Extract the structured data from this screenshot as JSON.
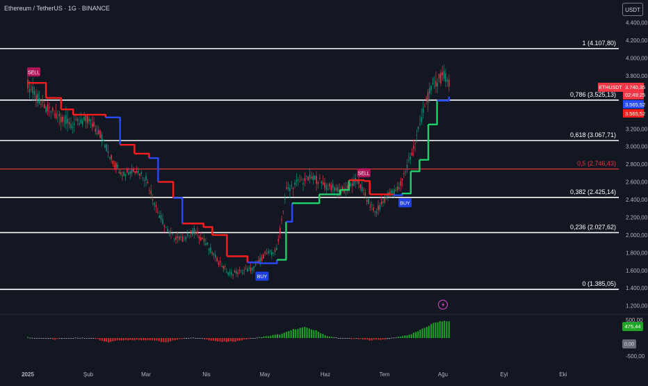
{
  "header": {
    "symbol_title": "Ethereum / TetherUS · 1G · BINANCE",
    "currency_button": "USDT"
  },
  "colors": {
    "background": "#131722",
    "fib_line": "#ffffff",
    "fib_mid_line": "#e03a3a",
    "trend_red": "#ff1e1e",
    "trend_blue": "#2a4bff",
    "trend_green": "#22d06a",
    "candle_up": "#089981",
    "candle_down": "#f23645",
    "osc_green": "#1fa626",
    "osc_red": "#d12c2c",
    "osc_gray": "#9a9ca3"
  },
  "chart_data": [
    {
      "type": "candlestick",
      "title": "Ethereum / TetherUS · 1G · BINANCE",
      "x_ticks": [
        "2025",
        "Şub",
        "Mar",
        "Nis",
        "May",
        "Haz",
        "Tem",
        "Ağu",
        "Eyl",
        "Eki"
      ],
      "y_ticks": [
        "4.400,00",
        "4.200,00",
        "4.000,00",
        "3.800,00",
        "3.200,00",
        "3.000,00",
        "2.800,00",
        "2.600,00",
        "2.400,00",
        "2.200,00",
        "2.000,00",
        "1.800,00",
        "1.600,00",
        "1.400,00",
        "1.200,00"
      ],
      "ylim": [
        1200,
        4400
      ],
      "fibonacci_levels": [
        {
          "label": "1 (4.107,80)",
          "value": 4107.8
        },
        {
          "label": "0,786 (3.525,13)",
          "value": 3525.13
        },
        {
          "label": "0,618 (3.067,71)",
          "value": 3067.71
        },
        {
          "label": "0,5 (2.746,43)",
          "value": 2746.43
        },
        {
          "label": "0,382 (2.425,14)",
          "value": 2425.14
        },
        {
          "label": "0,236 (2.027,62)",
          "value": 2027.62
        },
        {
          "label": "0 (1.385,05)",
          "value": 1385.05
        }
      ],
      "price_labels": [
        {
          "label": "ETHUSDT",
          "value": "3.740,35",
          "sub": "02:49:25",
          "color": "#f23645"
        },
        {
          "label": "",
          "value": "3.565,52",
          "sub": "",
          "color": "#2a4bff"
        },
        {
          "label": "",
          "value": "3.565,52",
          "sub": "",
          "color": "#ff1e1e"
        }
      ],
      "signals": [
        {
          "text": "SELL",
          "month": 0.0,
          "price": 3840
        },
        {
          "text": "BUY",
          "month": 3.85,
          "price": 1530
        },
        {
          "text": "SELL",
          "month": 5.55,
          "price": 2700
        },
        {
          "text": "BUY",
          "month": 6.25,
          "price": 2360
        }
      ],
      "ohlc_path": [
        {
          "m": 0.0,
          "p": 3700
        },
        {
          "m": 0.25,
          "p": 3450
        },
        {
          "m": 0.5,
          "p": 3350
        },
        {
          "m": 0.75,
          "p": 3250
        },
        {
          "m": 1.0,
          "p": 3300
        },
        {
          "m": 1.2,
          "p": 3150
        },
        {
          "m": 1.45,
          "p": 2800
        },
        {
          "m": 1.6,
          "p": 2700
        },
        {
          "m": 1.8,
          "p": 2750
        },
        {
          "m": 2.0,
          "p": 2650
        },
        {
          "m": 2.2,
          "p": 2250
        },
        {
          "m": 2.4,
          "p": 2000
        },
        {
          "m": 2.6,
          "p": 1950
        },
        {
          "m": 2.8,
          "p": 2050
        },
        {
          "m": 3.0,
          "p": 1900
        },
        {
          "m": 3.2,
          "p": 1700
        },
        {
          "m": 3.4,
          "p": 1560
        },
        {
          "m": 3.6,
          "p": 1590
        },
        {
          "m": 3.8,
          "p": 1620
        },
        {
          "m": 4.0,
          "p": 1780
        },
        {
          "m": 4.2,
          "p": 1830
        },
        {
          "m": 4.35,
          "p": 2500
        },
        {
          "m": 4.55,
          "p": 2600
        },
        {
          "m": 4.8,
          "p": 2650
        },
        {
          "m": 5.0,
          "p": 2560
        },
        {
          "m": 5.3,
          "p": 2500
        },
        {
          "m": 5.55,
          "p": 2620
        },
        {
          "m": 5.7,
          "p": 2400
        },
        {
          "m": 5.85,
          "p": 2250
        },
        {
          "m": 6.05,
          "p": 2450
        },
        {
          "m": 6.25,
          "p": 2530
        },
        {
          "m": 6.4,
          "p": 2800
        },
        {
          "m": 6.55,
          "p": 3100
        },
        {
          "m": 6.7,
          "p": 3500
        },
        {
          "m": 6.85,
          "p": 3700
        },
        {
          "m": 7.0,
          "p": 3800
        },
        {
          "m": 7.1,
          "p": 3740
        }
      ],
      "trend_line": [
        {
          "m": 0.0,
          "p": 3720,
          "c": "red"
        },
        {
          "m": 0.3,
          "p": 3550,
          "c": "red"
        },
        {
          "m": 0.55,
          "p": 3420,
          "c": "red"
        },
        {
          "m": 0.75,
          "p": 3360,
          "c": "red"
        },
        {
          "m": 1.3,
          "p": 3330,
          "c": "red"
        },
        {
          "m": 1.55,
          "p": 3020,
          "c": "blue"
        },
        {
          "m": 1.8,
          "p": 2920,
          "c": "red"
        },
        {
          "m": 2.05,
          "p": 2870,
          "c": "red"
        },
        {
          "m": 2.2,
          "p": 2600,
          "c": "blue"
        },
        {
          "m": 2.45,
          "p": 2420,
          "c": "red"
        },
        {
          "m": 2.6,
          "p": 2130,
          "c": "blue"
        },
        {
          "m": 2.95,
          "p": 2090,
          "c": "red"
        },
        {
          "m": 3.1,
          "p": 2000,
          "c": "red"
        },
        {
          "m": 3.35,
          "p": 1760,
          "c": "red"
        },
        {
          "m": 3.7,
          "p": 1690,
          "c": "red"
        },
        {
          "m": 3.9,
          "p": 1680,
          "c": "blue"
        },
        {
          "m": 4.2,
          "p": 1720,
          "c": "blue"
        },
        {
          "m": 4.35,
          "p": 2150,
          "c": "green"
        },
        {
          "m": 4.45,
          "p": 2360,
          "c": "blue"
        },
        {
          "m": 4.9,
          "p": 2460,
          "c": "green"
        },
        {
          "m": 5.25,
          "p": 2510,
          "c": "green"
        },
        {
          "m": 5.4,
          "p": 2620,
          "c": "green"
        },
        {
          "m": 5.65,
          "p": 2610,
          "c": "red"
        },
        {
          "m": 5.75,
          "p": 2460,
          "c": "red"
        },
        {
          "m": 6.15,
          "p": 2450,
          "c": "red"
        },
        {
          "m": 6.3,
          "p": 2470,
          "c": "blue"
        },
        {
          "m": 6.45,
          "p": 2720,
          "c": "green"
        },
        {
          "m": 6.6,
          "p": 2850,
          "c": "green"
        },
        {
          "m": 6.75,
          "p": 3250,
          "c": "green"
        },
        {
          "m": 6.9,
          "p": 3520,
          "c": "green"
        },
        {
          "m": 7.1,
          "p": 3565,
          "c": "blue"
        }
      ]
    },
    {
      "type": "bar",
      "title": "",
      "y_ticks": [
        "500,00",
        "-500,00"
      ],
      "ylim": [
        -500,
        500
      ],
      "value_labels": [
        {
          "text": "475,44",
          "color": "#1fa626"
        },
        {
          "text": "0,00",
          "color": "#6a6d78"
        }
      ],
      "osc_path": [
        {
          "m": 0.0,
          "v": 20
        },
        {
          "m": 0.2,
          "v": -10
        },
        {
          "m": 0.45,
          "v": -40
        },
        {
          "m": 0.6,
          "v": -10
        },
        {
          "m": 0.8,
          "v": 5
        },
        {
          "m": 1.1,
          "v": -5
        },
        {
          "m": 1.35,
          "v": -120
        },
        {
          "m": 1.5,
          "v": -60
        },
        {
          "m": 1.9,
          "v": -50
        },
        {
          "m": 2.1,
          "v": -60
        },
        {
          "m": 2.35,
          "v": -130
        },
        {
          "m": 2.5,
          "v": -40
        },
        {
          "m": 2.75,
          "v": 10
        },
        {
          "m": 3.0,
          "v": -40
        },
        {
          "m": 3.25,
          "v": -110
        },
        {
          "m": 3.5,
          "v": -90
        },
        {
          "m": 3.7,
          "v": -30
        },
        {
          "m": 4.0,
          "v": 40
        },
        {
          "m": 4.3,
          "v": 120
        },
        {
          "m": 4.45,
          "v": 230
        },
        {
          "m": 4.65,
          "v": 300
        },
        {
          "m": 4.85,
          "v": 200
        },
        {
          "m": 5.05,
          "v": 40
        },
        {
          "m": 5.3,
          "v": -10
        },
        {
          "m": 5.55,
          "v": -30
        },
        {
          "m": 5.75,
          "v": -60
        },
        {
          "m": 6.0,
          "v": -40
        },
        {
          "m": 6.2,
          "v": 20
        },
        {
          "m": 6.45,
          "v": 100
        },
        {
          "m": 6.65,
          "v": 250
        },
        {
          "m": 6.85,
          "v": 420
        },
        {
          "m": 7.0,
          "v": 470
        },
        {
          "m": 7.1,
          "v": 460
        }
      ]
    }
  ]
}
